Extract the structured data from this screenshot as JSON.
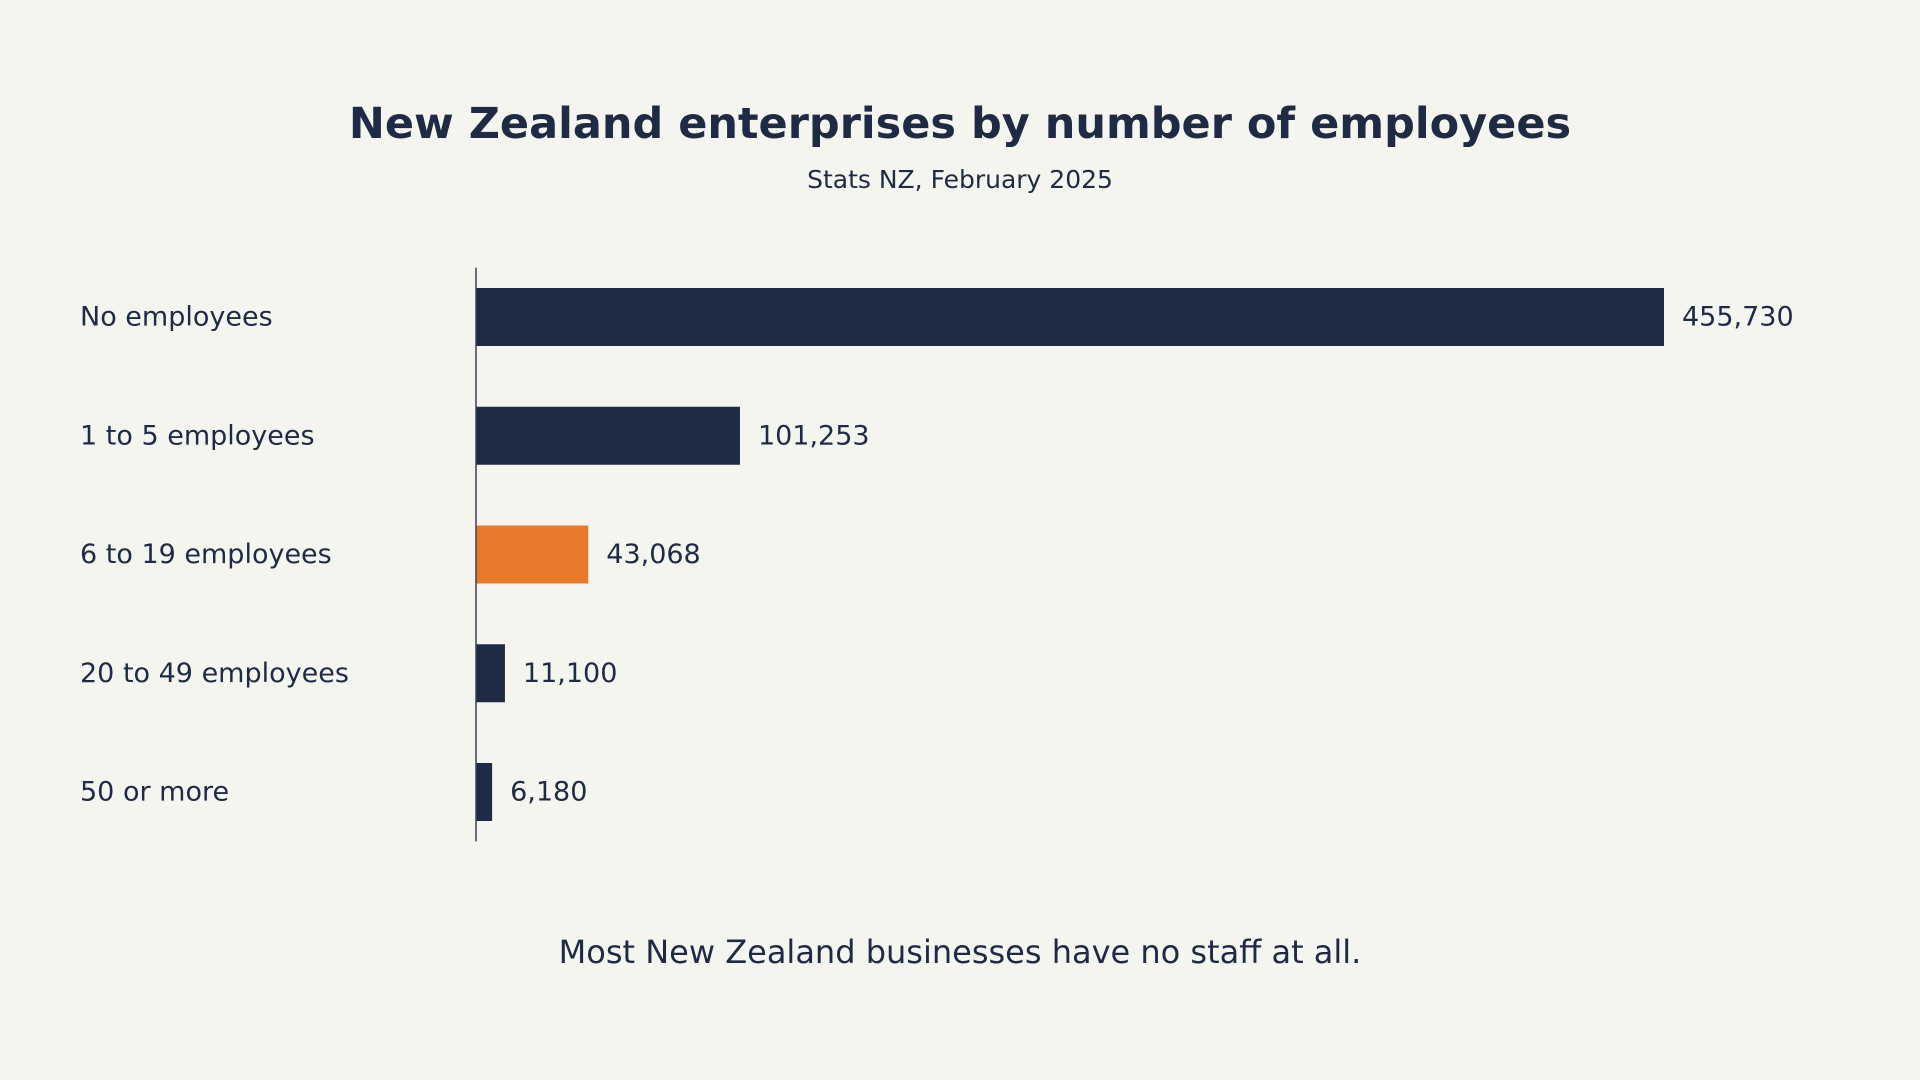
{
  "title": "New Zealand enterprises by number of employees",
  "subtitle": "Stats NZ, February 2025",
  "footnote": "Most New Zealand businesses have no staff at all.",
  "colors": {
    "background": "#f5f5f0",
    "bar": "#1f2a44",
    "highlight": "#e8782a",
    "text": "#1f2a44"
  },
  "chart_data": {
    "type": "bar",
    "orientation": "horizontal",
    "categories": [
      "No employees",
      "1 to 5 employees",
      "6 to 19 employees",
      "20 to 49 employees",
      "50 or more"
    ],
    "values": [
      455730,
      101253,
      43068,
      11100,
      6180
    ],
    "value_labels": [
      "455,730",
      "101,253",
      "43,068",
      "11,100",
      "6,180"
    ],
    "highlight_index": 2,
    "xlim": [
      0,
      455730
    ],
    "grid": false,
    "legend": "none"
  }
}
